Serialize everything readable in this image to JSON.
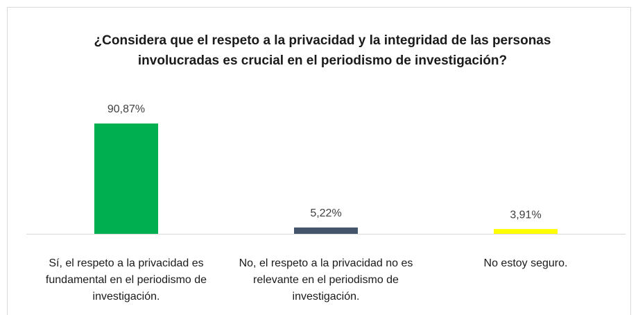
{
  "chart_data": {
    "type": "bar",
    "title": "¿Considera que el respeto a la privacidad y la integridad de las personas involucradas es crucial en el periodismo de investigación?",
    "categories": [
      "Sí, el respeto a la privacidad es fundamental en el periodismo de investigación.",
      "No, el respeto a la privacidad no es relevante en el periodismo de investigación.",
      "No estoy seguro."
    ],
    "values": [
      90.87,
      5.22,
      3.91
    ],
    "value_labels": [
      "90,87%",
      "5,22%",
      "3,91%"
    ],
    "colors": [
      "#00b050",
      "#44546a",
      "#ffff00"
    ]
  }
}
